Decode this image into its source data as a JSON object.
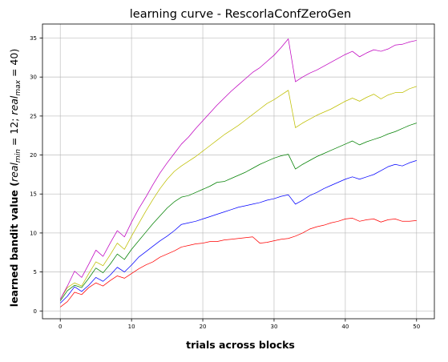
{
  "chart_data": {
    "type": "line",
    "title": "learning curve - RescorlaConfZeroGen",
    "xlabel": "trials across blocks",
    "ylabel": {
      "prefix": "learned bandit value (",
      "real_min_base": "real",
      "real_min_sub": "min",
      "real_min_value": " = 12; ",
      "real_max_base": "real",
      "real_max_sub": "max",
      "real_max_value": " = 40)"
    },
    "xlim": [
      -2.5,
      52.5
    ],
    "ylim": [
      -1.0,
      36.8
    ],
    "xticks": [
      0,
      10,
      20,
      30,
      40,
      50
    ],
    "yticks": [
      0,
      5,
      10,
      15,
      20,
      25,
      30,
      35
    ],
    "grid": true,
    "x": [
      0,
      1,
      2,
      3,
      4,
      5,
      6,
      7,
      8,
      9,
      10,
      11,
      12,
      13,
      14,
      15,
      16,
      17,
      18,
      19,
      20,
      21,
      22,
      23,
      24,
      25,
      26,
      27,
      28,
      29,
      30,
      31,
      32,
      33,
      34,
      35,
      36,
      37,
      38,
      39,
      40,
      41,
      42,
      43,
      44,
      45,
      46,
      47,
      48,
      49,
      50
    ],
    "series": [
      {
        "color": "#ff0000",
        "values": [
          0.5,
          1.2,
          2.4,
          2.1,
          3.0,
          3.6,
          3.2,
          3.9,
          4.5,
          4.2,
          4.8,
          5.4,
          5.9,
          6.3,
          6.9,
          7.3,
          7.7,
          8.2,
          8.4,
          8.6,
          8.7,
          8.9,
          8.9,
          9.1,
          9.2,
          9.3,
          9.4,
          9.5,
          8.7,
          8.8,
          9.0,
          9.2,
          9.3,
          9.6,
          10.0,
          10.5,
          10.8,
          11.0,
          11.3,
          11.5,
          11.8,
          11.9,
          11.5,
          11.7,
          11.8,
          11.4,
          11.7,
          11.8,
          11.5,
          11.5,
          11.6
        ]
      },
      {
        "color": "#0000ff",
        "values": [
          1.0,
          1.9,
          3.1,
          2.5,
          3.3,
          4.3,
          3.8,
          4.6,
          5.6,
          5.0,
          5.9,
          6.9,
          7.6,
          8.3,
          9.0,
          9.6,
          10.3,
          11.1,
          11.3,
          11.5,
          11.8,
          12.1,
          12.4,
          12.7,
          13.0,
          13.3,
          13.5,
          13.7,
          13.9,
          14.2,
          14.4,
          14.7,
          14.9,
          13.7,
          14.2,
          14.8,
          15.2,
          15.7,
          16.1,
          16.5,
          16.9,
          17.2,
          16.9,
          17.2,
          17.5,
          18.0,
          18.5,
          18.8,
          18.6,
          19.0,
          19.3
        ]
      },
      {
        "color": "#008000",
        "values": [
          1.3,
          2.6,
          3.3,
          3.0,
          4.2,
          5.5,
          4.9,
          6.0,
          7.3,
          6.6,
          7.9,
          9.0,
          10.1,
          11.2,
          12.2,
          13.2,
          14.0,
          14.6,
          14.8,
          15.2,
          15.6,
          16.0,
          16.5,
          16.6,
          17.0,
          17.4,
          17.8,
          18.3,
          18.8,
          19.2,
          19.6,
          19.9,
          20.1,
          18.2,
          18.8,
          19.3,
          19.8,
          20.2,
          20.6,
          21.0,
          21.4,
          21.8,
          21.3,
          21.7,
          22.0,
          22.3,
          22.7,
          23.0,
          23.4,
          23.8,
          24.1
        ]
      },
      {
        "color": "#bfbf00",
        "values": [
          1.5,
          3.0,
          3.6,
          3.2,
          4.8,
          6.3,
          5.8,
          7.2,
          8.7,
          7.9,
          9.6,
          11.2,
          12.8,
          14.3,
          15.7,
          16.9,
          17.9,
          18.6,
          19.2,
          19.8,
          20.5,
          21.2,
          21.9,
          22.6,
          23.2,
          23.8,
          24.5,
          25.2,
          25.9,
          26.6,
          27.1,
          27.7,
          28.3,
          23.5,
          24.1,
          24.6,
          25.1,
          25.5,
          25.9,
          26.4,
          26.9,
          27.3,
          26.9,
          27.4,
          27.8,
          27.2,
          27.7,
          28.0,
          28.0,
          28.5,
          28.8
        ]
      },
      {
        "color": "#bf00bf",
        "values": [
          1.5,
          3.2,
          5.1,
          4.3,
          6.0,
          7.8,
          7.0,
          8.7,
          10.3,
          9.5,
          11.4,
          13.1,
          14.6,
          16.2,
          17.7,
          19.0,
          20.2,
          21.4,
          22.3,
          23.4,
          24.4,
          25.4,
          26.4,
          27.3,
          28.2,
          29.0,
          29.8,
          30.6,
          31.2,
          32.0,
          32.8,
          33.8,
          34.9,
          29.4,
          30.0,
          30.5,
          30.9,
          31.4,
          31.9,
          32.4,
          32.9,
          33.3,
          32.6,
          33.1,
          33.5,
          33.3,
          33.6,
          34.1,
          34.2,
          34.5,
          34.7
        ]
      }
    ]
  }
}
